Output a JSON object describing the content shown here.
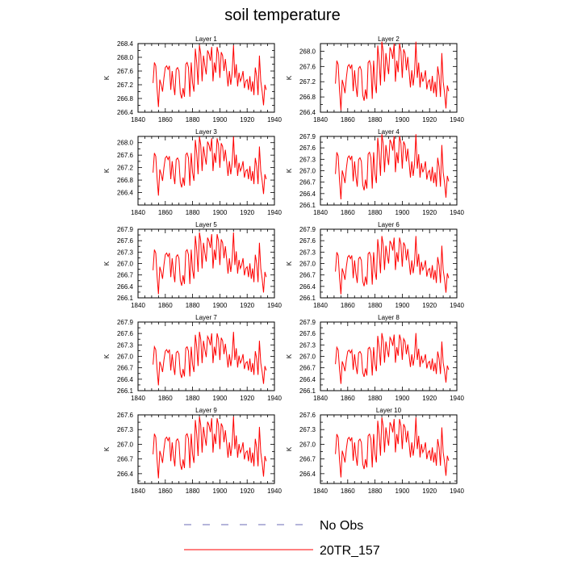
{
  "title": "soil temperature",
  "legend": [
    {
      "label": "No Obs",
      "color": "#6b6bb5",
      "style": "dashed"
    },
    {
      "label": "20TR_157",
      "color": "#ff0000",
      "style": "solid"
    }
  ],
  "chart_data": {
    "type": "line",
    "x": [
      1851,
      1852,
      1853,
      1854,
      1855,
      1856,
      1857,
      1858,
      1859,
      1860,
      1861,
      1862,
      1863,
      1864,
      1865,
      1866,
      1867,
      1868,
      1869,
      1870,
      1871,
      1872,
      1873,
      1874,
      1875,
      1876,
      1877,
      1878,
      1879,
      1880,
      1881,
      1882,
      1883,
      1884,
      1885,
      1886,
      1887,
      1888,
      1889,
      1890,
      1891,
      1892,
      1893,
      1894,
      1895,
      1896,
      1897,
      1898,
      1899,
      1900,
      1901,
      1902,
      1903,
      1904,
      1905,
      1906,
      1907,
      1908,
      1909,
      1910,
      1911,
      1912,
      1913,
      1914,
      1915,
      1916,
      1917,
      1918,
      1919,
      1920,
      1921,
      1922,
      1923,
      1924,
      1925,
      1926,
      1927,
      1928,
      1929,
      1930,
      1931,
      1932,
      1933,
      1934
    ],
    "series_name": "20TR_157",
    "line_color": "#ff0000",
    "xlim": [
      1840,
      1940
    ],
    "xticks": [
      "1840",
      "1860",
      "1880",
      "1900",
      "1920",
      "1940"
    ],
    "ylabel": "K",
    "panels": [
      {
        "title": "Layer 1",
        "ylim": [
          266.4,
          268.4
        ],
        "yticks": [
          "266.4",
          "266.8",
          "267.2",
          "267.6",
          "268.0",
          "268.4"
        ],
        "base": 267.5,
        "amp": 1.0
      },
      {
        "title": "Layer 2",
        "ylim": [
          266.4,
          268.2
        ],
        "yticks": [
          "266.4",
          "266.8",
          "267.2",
          "267.6",
          "268.0"
        ],
        "base": 267.4,
        "amp": 1.0
      },
      {
        "title": "Layer 3",
        "ylim": [
          266.0,
          268.2
        ],
        "yticks": [
          "266.4",
          "266.8",
          "267.2",
          "267.6",
          "268.0"
        ],
        "base": 267.3,
        "amp": 1.05
      },
      {
        "title": "Layer 4",
        "ylim": [
          266.1,
          267.9
        ],
        "yticks": [
          "266.1",
          "266.4",
          "266.7",
          "267.0",
          "267.3",
          "267.6",
          "267.9"
        ],
        "base": 267.15,
        "amp": 0.95
      },
      {
        "title": "Layer 5",
        "ylim": [
          266.1,
          267.9
        ],
        "yticks": [
          "266.1",
          "266.4",
          "266.7",
          "267.0",
          "267.3",
          "267.6",
          "267.9"
        ],
        "base": 267.05,
        "amp": 0.9
      },
      {
        "title": "Layer 6",
        "ylim": [
          266.1,
          267.9
        ],
        "yticks": [
          "266.1",
          "266.4",
          "266.7",
          "267.0",
          "267.3",
          "267.6",
          "267.9"
        ],
        "base": 267.0,
        "amp": 0.85
      },
      {
        "title": "Layer 7",
        "ylim": [
          266.1,
          267.9
        ],
        "yticks": [
          "266.1",
          "266.4",
          "266.7",
          "267.0",
          "267.3",
          "267.6",
          "267.9"
        ],
        "base": 266.98,
        "amp": 0.78
      },
      {
        "title": "Layer 8",
        "ylim": [
          266.1,
          267.9
        ],
        "yticks": [
          "266.1",
          "266.4",
          "266.7",
          "267.0",
          "267.3",
          "267.6",
          "267.9"
        ],
        "base": 266.98,
        "amp": 0.74
      },
      {
        "title": "Layer 9",
        "ylim": [
          266.2,
          267.6
        ],
        "yticks": [
          "266.4",
          "266.7",
          "267.0",
          "267.3",
          "267.6"
        ],
        "base": 266.97,
        "amp": 0.7
      },
      {
        "title": "Layer 10",
        "ylim": [
          266.2,
          267.6
        ],
        "yticks": [
          "266.4",
          "266.7",
          "267.0",
          "267.3",
          "267.6"
        ],
        "base": 266.97,
        "amp": 0.68
      }
    ],
    "shape": [
      -0.25,
      0.35,
      0.25,
      -0.45,
      -0.95,
      -0.15,
      -0.3,
      -0.5,
      -0.1,
      0.2,
      0.25,
      0.15,
      0.25,
      -0.45,
      0.1,
      -0.3,
      -0.6,
      0.15,
      0.2,
      0.1,
      -0.55,
      -0.7,
      -0.4,
      -0.65,
      0.3,
      0.35,
      0.2,
      -0.65,
      0.35,
      -0.25,
      -0.5,
      0.75,
      0.35,
      -0.3,
      0.85,
      0.6,
      -0.2,
      0.55,
      0.25,
      0.0,
      0.7,
      0.6,
      0.4,
      0.8,
      -0.2,
      0.35,
      0.05,
      0.8,
      0.6,
      -0.1,
      0.65,
      0.55,
      0.1,
      0.45,
      0.05,
      -0.35,
      0.1,
      -0.3,
      0.05,
      0.85,
      -0.1,
      0.3,
      -0.35,
      0.05,
      -0.2,
      -0.1,
      0.1,
      -0.4,
      -0.2,
      -0.15,
      -0.45,
      -0.05,
      -0.5,
      -0.2,
      -0.6,
      0.2,
      -0.05,
      -0.6,
      0.55,
      -0.2,
      -0.5,
      -0.9,
      -0.3,
      -0.45
    ]
  }
}
